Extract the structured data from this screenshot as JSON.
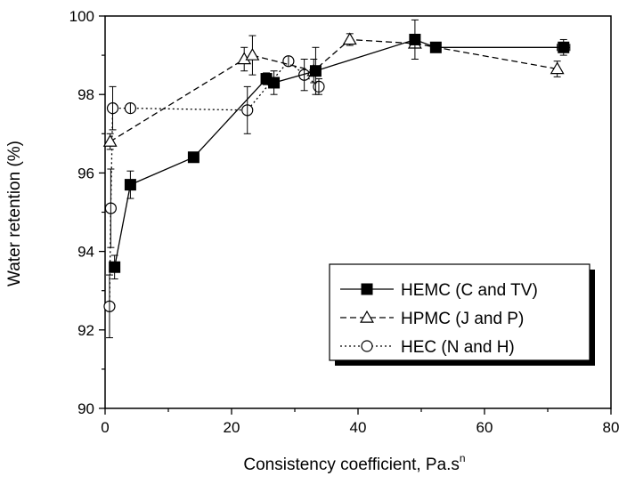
{
  "chart_data": {
    "type": "scatter",
    "xlabel": "Consistency coefficient, Pa.s",
    "xlabel_superscript": "n",
    "ylabel": "Water retention (%)",
    "xlim": [
      0,
      80
    ],
    "ylim": [
      90,
      100
    ],
    "x_ticks": [
      0,
      20,
      40,
      60,
      80
    ],
    "y_ticks": [
      90,
      92,
      94,
      96,
      98,
      100
    ],
    "grid": false,
    "legend_position": "lower-right",
    "series": [
      {
        "name": "HEMC (C and TV)",
        "line_style": "solid",
        "marker": "filled-square",
        "connected": true,
        "points": [
          {
            "x": 1.5,
            "y": 93.6,
            "yerr": 0.3
          },
          {
            "x": 4.0,
            "y": 95.7,
            "yerr": 0.35
          },
          {
            "x": 14.0,
            "y": 96.4,
            "yerr": 0.1
          },
          {
            "x": 25.5,
            "y": 98.4,
            "yerr": 0.15
          },
          {
            "x": 26.7,
            "y": 98.3,
            "yerr": 0.3
          },
          {
            "x": 33.3,
            "y": 98.6,
            "yerr": 0.6
          },
          {
            "x": 49.0,
            "y": 99.4,
            "yerr": 0.5
          },
          {
            "x": 52.3,
            "y": 99.2,
            "yerr": 0.1
          },
          {
            "x": 72.5,
            "y": 99.2,
            "yerr": 0.2,
            "xerr": 1.0
          }
        ]
      },
      {
        "name": "HPMC (J and P)",
        "line_style": "dashed",
        "marker": "open-triangle",
        "connected": true,
        "points": [
          {
            "x": 0.8,
            "y": 96.8,
            "yerr": 0.2
          },
          {
            "x": 22.0,
            "y": 98.9,
            "yerr": 0.3
          },
          {
            "x": 23.3,
            "y": 99.0,
            "yerr": 0.5
          },
          {
            "x": 33.0,
            "y": 98.6,
            "yerr": 0.3
          },
          {
            "x": 38.7,
            "y": 99.4,
            "yerr": 0.15
          },
          {
            "x": 49.0,
            "y": 99.3,
            "yerr": 0.1
          },
          {
            "x": 71.5,
            "y": 98.65,
            "yerr": 0.2
          }
        ]
      },
      {
        "name": "HEC (N and H)",
        "line_style": "dotted",
        "marker": "open-circle",
        "connected": true,
        "points": [
          {
            "x": 0.7,
            "y": 92.6,
            "yerr": 0.8
          },
          {
            "x": 0.9,
            "y": 95.1,
            "yerr": 1.0
          },
          {
            "x": 1.2,
            "y": 97.65,
            "yerr": 0.55
          },
          {
            "x": 4.0,
            "y": 97.65,
            "yerr": 0.1
          },
          {
            "x": 22.5,
            "y": 97.6,
            "yerr": 0.6
          },
          {
            "x": 29.0,
            "y": 98.85,
            "yerr": 0.1
          },
          {
            "x": 31.5,
            "y": 98.5,
            "yerr": 0.4
          },
          {
            "x": 33.8,
            "y": 98.2,
            "yerr": 0.2
          }
        ]
      }
    ]
  }
}
